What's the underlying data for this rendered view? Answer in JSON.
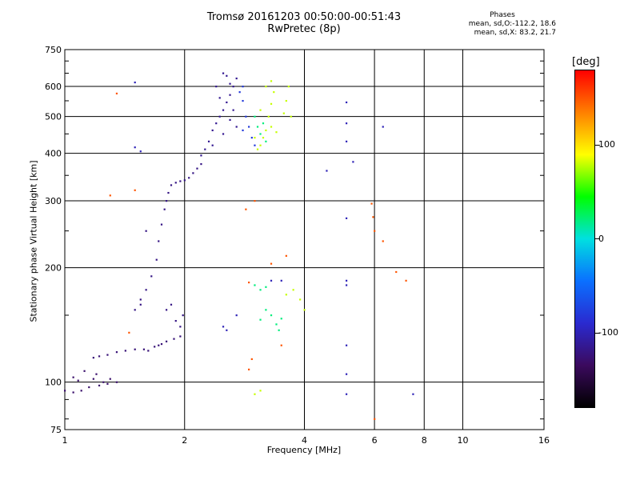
{
  "header": {
    "title_line1": "Tromsø 20161203 00:50:00-00:51:43",
    "title_line2": "RwPretec (8p)"
  },
  "stats": {
    "label": "Phases",
    "o_line": "mean, sd,O:-112.2, 18.6",
    "x_line": "mean, sd,X:  83.2, 21.7"
  },
  "colorbar": {
    "unit": "[deg]",
    "ticks": [
      "100",
      "0",
      "-100"
    ],
    "tick_values": [
      100,
      0,
      -100
    ],
    "range": [
      -180,
      180
    ],
    "colors": [
      "#000000",
      "#3b0a5e",
      "#2a2ad0",
      "#0a70ff",
      "#00e0e0",
      "#00ff00",
      "#ffff00",
      "#ff8000",
      "#ff0000"
    ]
  },
  "chart_data": {
    "type": "scatter",
    "title": "Tromsø 20161203 00:50:00-00:51:43",
    "subtitle": "RwPretec (8p)",
    "xlabel": "Frequency [MHz]",
    "ylabel": "Stationary phase Virtual Height [km]",
    "xscale": "log",
    "yscale": "log",
    "xlim": [
      1,
      16
    ],
    "ylim": [
      75,
      750
    ],
    "xticks": [
      "1",
      "2",
      "4",
      "6",
      "8",
      "10",
      "16"
    ],
    "xtick_values": [
      1,
      2,
      4,
      6,
      8,
      10,
      16
    ],
    "yticks": [
      "75",
      "100",
      "200",
      "300",
      "400",
      "500",
      "600",
      "750"
    ],
    "ytick_values": [
      75,
      100,
      200,
      300,
      400,
      500,
      600,
      750
    ],
    "grid": true,
    "series": [
      {
        "phase": -130,
        "points": [
          [
            1.0,
            95
          ],
          [
            1.05,
            94
          ],
          [
            1.1,
            95
          ],
          [
            1.15,
            97
          ],
          [
            1.18,
            102
          ],
          [
            1.22,
            98
          ],
          [
            1.25,
            100
          ],
          [
            1.28,
            99
          ],
          [
            1.05,
            103
          ],
          [
            1.12,
            107
          ],
          [
            1.2,
            105
          ],
          [
            1.3,
            102
          ],
          [
            1.35,
            100
          ],
          [
            1.08,
            101
          ]
        ]
      },
      {
        "phase": -125,
        "points": [
          [
            1.18,
            116
          ],
          [
            1.22,
            117
          ],
          [
            1.28,
            118
          ],
          [
            1.35,
            120
          ],
          [
            1.42,
            121
          ],
          [
            1.5,
            122
          ],
          [
            1.58,
            122
          ],
          [
            1.68,
            124
          ],
          [
            1.75,
            126
          ],
          [
            1.8,
            128
          ],
          [
            1.88,
            130
          ],
          [
            1.95,
            132
          ],
          [
            1.72,
            125
          ],
          [
            1.62,
            121
          ]
        ]
      },
      {
        "phase": -120,
        "points": [
          [
            1.5,
            155
          ],
          [
            1.55,
            165
          ],
          [
            1.6,
            175
          ],
          [
            1.65,
            190
          ],
          [
            1.7,
            210
          ],
          [
            1.72,
            235
          ],
          [
            1.75,
            260
          ],
          [
            1.78,
            285
          ],
          [
            1.8,
            300
          ],
          [
            1.82,
            315
          ],
          [
            1.85,
            330
          ],
          [
            1.9,
            335
          ],
          [
            1.95,
            338
          ],
          [
            2.0,
            340
          ],
          [
            2.05,
            345
          ],
          [
            2.1,
            355
          ],
          [
            2.15,
            365
          ],
          [
            2.2,
            375
          ],
          [
            1.98,
            150
          ],
          [
            1.95,
            140
          ],
          [
            1.9,
            145
          ],
          [
            1.85,
            160
          ],
          [
            1.8,
            155
          ],
          [
            1.6,
            250
          ],
          [
            1.55,
            160
          ]
        ]
      },
      {
        "phase": -115,
        "points": [
          [
            2.2,
            395
          ],
          [
            2.25,
            410
          ],
          [
            2.3,
            430
          ],
          [
            2.35,
            460
          ],
          [
            2.4,
            480
          ],
          [
            2.45,
            500
          ],
          [
            2.5,
            520
          ],
          [
            2.55,
            545
          ],
          [
            2.6,
            570
          ],
          [
            2.65,
            600
          ],
          [
            2.7,
            630
          ],
          [
            2.5,
            650
          ],
          [
            2.55,
            640
          ],
          [
            2.6,
            610
          ],
          [
            2.45,
            560
          ],
          [
            2.4,
            600
          ],
          [
            2.65,
            520
          ],
          [
            2.7,
            470
          ],
          [
            2.35,
            420
          ],
          [
            2.5,
            450
          ],
          [
            2.6,
            490
          ]
        ]
      },
      {
        "phase": -100,
        "points": [
          [
            1.5,
            615
          ],
          [
            1.5,
            415
          ],
          [
            1.55,
            405
          ],
          [
            4.55,
            360
          ],
          [
            5.1,
            545
          ],
          [
            5.1,
            480
          ],
          [
            5.1,
            430
          ],
          [
            5.3,
            380
          ],
          [
            6.3,
            470
          ],
          [
            5.1,
            270
          ],
          [
            5.1,
            185
          ],
          [
            5.1,
            180
          ],
          [
            5.1,
            125
          ],
          [
            5.1,
            105
          ],
          [
            5.1,
            93
          ],
          [
            2.5,
            140
          ],
          [
            2.55,
            137
          ],
          [
            2.7,
            150
          ],
          [
            3.3,
            185
          ],
          [
            3.5,
            185
          ],
          [
            7.5,
            93
          ]
        ]
      },
      {
        "phase": -80,
        "points": [
          [
            2.8,
            600
          ],
          [
            2.75,
            580
          ],
          [
            2.8,
            550
          ],
          [
            2.85,
            500
          ],
          [
            2.9,
            470
          ],
          [
            2.95,
            440
          ],
          [
            3.0,
            420
          ],
          [
            2.8,
            460
          ]
        ]
      },
      {
        "phase": 20,
        "points": [
          [
            3.0,
            500
          ],
          [
            3.05,
            470
          ],
          [
            3.1,
            450
          ],
          [
            3.15,
            480
          ],
          [
            3.2,
            430
          ],
          [
            3.0,
            180
          ],
          [
            3.1,
            175
          ],
          [
            3.2,
            178
          ],
          [
            3.4,
            142
          ],
          [
            3.5,
            147
          ],
          [
            3.45,
            137
          ],
          [
            3.3,
            150
          ],
          [
            3.1,
            146
          ],
          [
            3.2,
            155
          ]
        ]
      },
      {
        "phase": 80,
        "points": [
          [
            3.1,
            420
          ],
          [
            3.15,
            440
          ],
          [
            3.2,
            460
          ],
          [
            3.25,
            500
          ],
          [
            3.3,
            540
          ],
          [
            3.35,
            580
          ],
          [
            3.2,
            600
          ],
          [
            3.3,
            620
          ],
          [
            3.6,
            550
          ],
          [
            3.55,
            510
          ],
          [
            3.7,
            500
          ],
          [
            3.65,
            600
          ],
          [
            3.0,
            440
          ],
          [
            3.05,
            410
          ],
          [
            3.4,
            455
          ],
          [
            3.3,
            470
          ],
          [
            3.1,
            520
          ],
          [
            3.6,
            170
          ],
          [
            3.75,
            175
          ],
          [
            3.9,
            165
          ],
          [
            4.0,
            155
          ],
          [
            3.0,
            93
          ],
          [
            3.1,
            95
          ]
        ]
      },
      {
        "phase": 150,
        "points": [
          [
            2.85,
            285
          ],
          [
            2.9,
            183
          ],
          [
            3.0,
            300
          ],
          [
            3.3,
            205
          ],
          [
            3.6,
            215
          ],
          [
            5.9,
            295
          ],
          [
            5.95,
            272
          ],
          [
            6.0,
            250
          ],
          [
            6.3,
            235
          ],
          [
            6.8,
            195
          ],
          [
            7.2,
            185
          ],
          [
            6.0,
            80
          ],
          [
            2.95,
            115
          ],
          [
            2.9,
            108
          ],
          [
            3.5,
            125
          ],
          [
            1.5,
            320
          ],
          [
            1.35,
            575
          ],
          [
            1.3,
            310
          ],
          [
            1.45,
            135
          ]
        ]
      }
    ]
  }
}
